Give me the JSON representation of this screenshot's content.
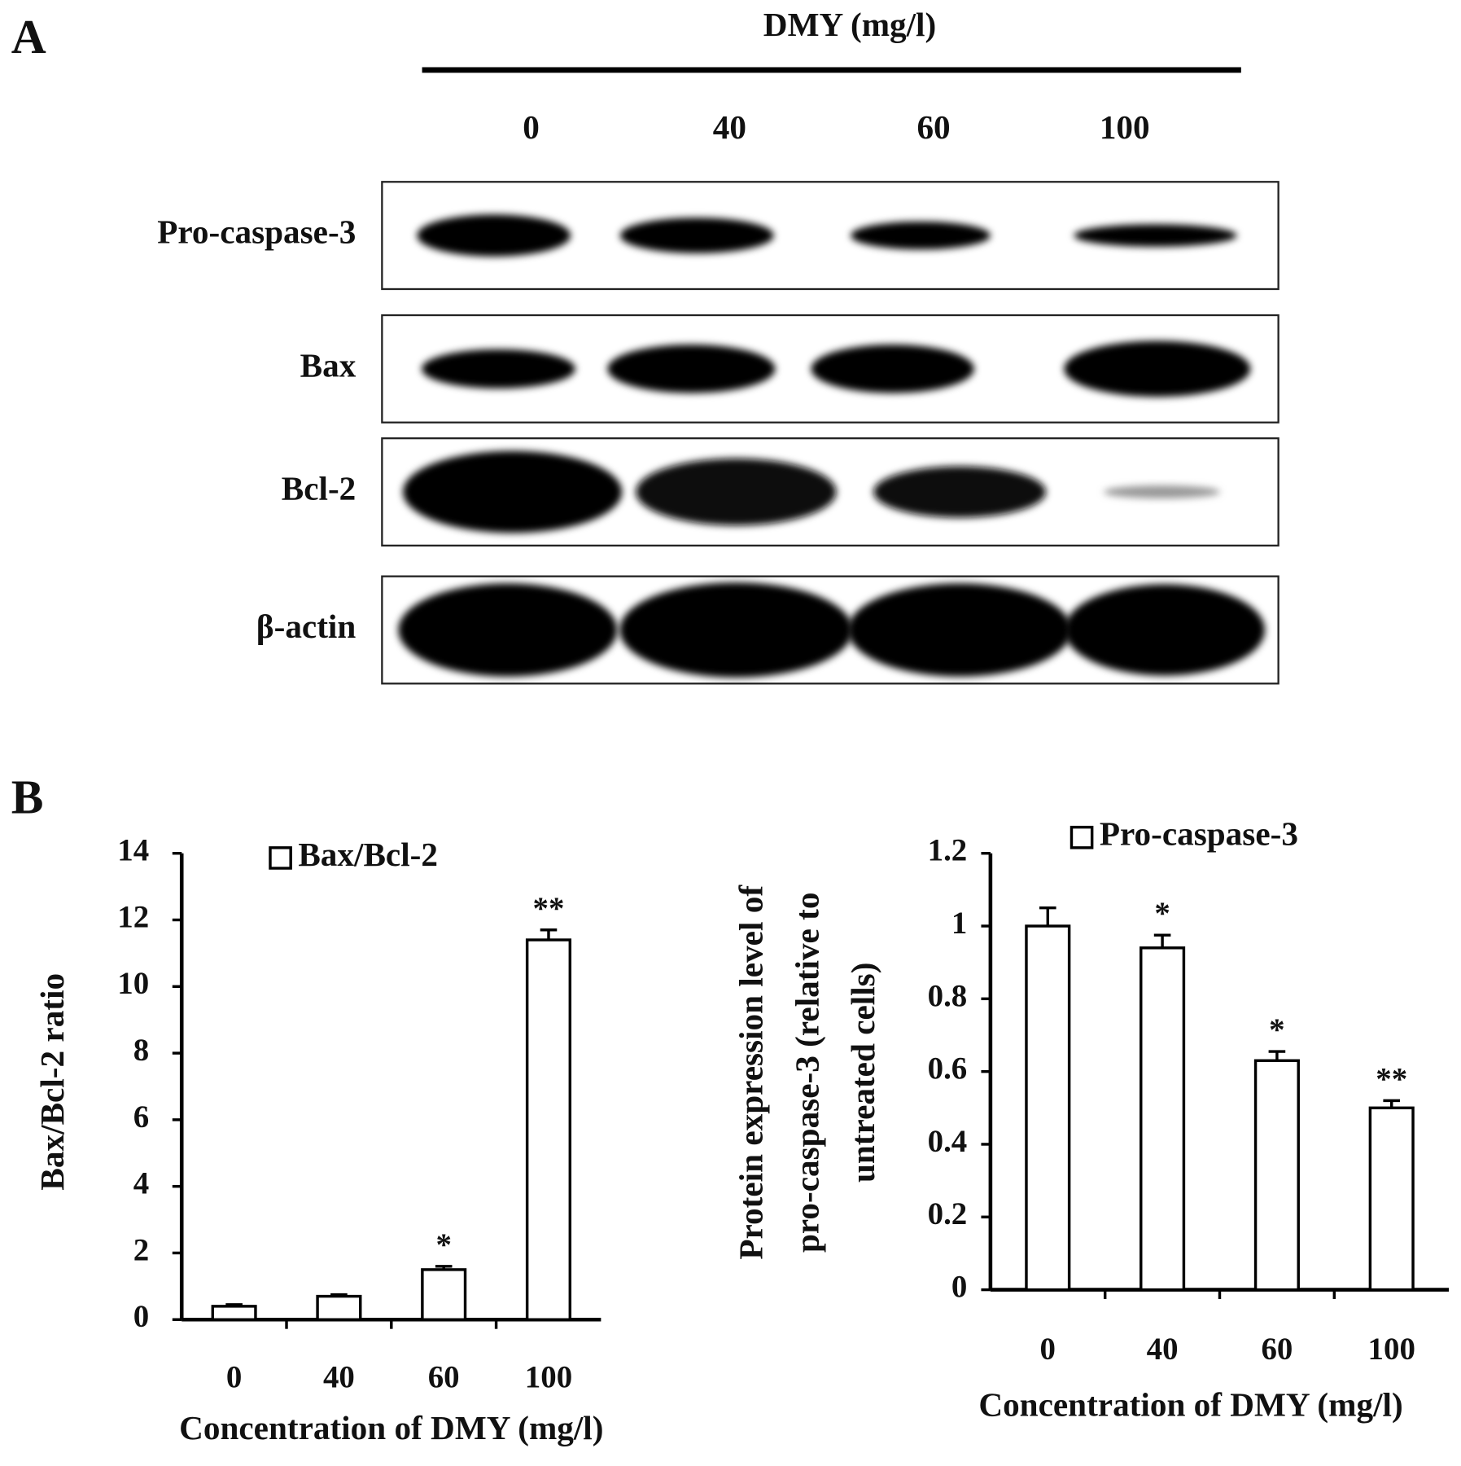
{
  "panel_a": {
    "label": "A",
    "header": "DMY (mg/l)",
    "lanes": [
      "0",
      "40",
      "60",
      "100"
    ],
    "rows": [
      "Pro-caspase-3",
      "Bax",
      "Bcl-2",
      "β-actin"
    ]
  },
  "panel_b": {
    "label": "B"
  },
  "chart_data": [
    {
      "type": "bar",
      "y_label": [
        "Bax/Bcl-2 ratio"
      ],
      "x_label": "Concentration of DMY (mg/l)",
      "categories": [
        "0",
        "40",
        "60",
        "100"
      ],
      "series": [
        {
          "name": "Bax/Bcl-2",
          "color": "#ffffff",
          "values": [
            0.4,
            0.7,
            1.5,
            11.4
          ],
          "errors": [
            0.05,
            0.05,
            0.1,
            0.3
          ]
        }
      ],
      "annotations": [
        null,
        null,
        "*",
        "**"
      ],
      "ylim": [
        0,
        14
      ],
      "yticks": [
        0,
        2,
        4,
        6,
        8,
        10,
        12,
        14
      ]
    },
    {
      "type": "bar",
      "y_label": [
        "Protein expression level of",
        "pro-caspase-3 (relative to",
        "untreated cells)"
      ],
      "x_label": "Concentration of DMY (mg/l)",
      "categories": [
        "0",
        "40",
        "60",
        "100"
      ],
      "series": [
        {
          "name": "Pro-caspase-3",
          "color": "#ffffff",
          "values": [
            1.0,
            0.94,
            0.63,
            0.5
          ],
          "errors": [
            0.05,
            0.035,
            0.025,
            0.02
          ]
        }
      ],
      "annotations": [
        null,
        "*",
        "*",
        "**"
      ],
      "ylim": [
        0,
        1.2
      ],
      "yticks": [
        0,
        0.2,
        0.4,
        0.6,
        0.8,
        1,
        1.2
      ]
    }
  ]
}
